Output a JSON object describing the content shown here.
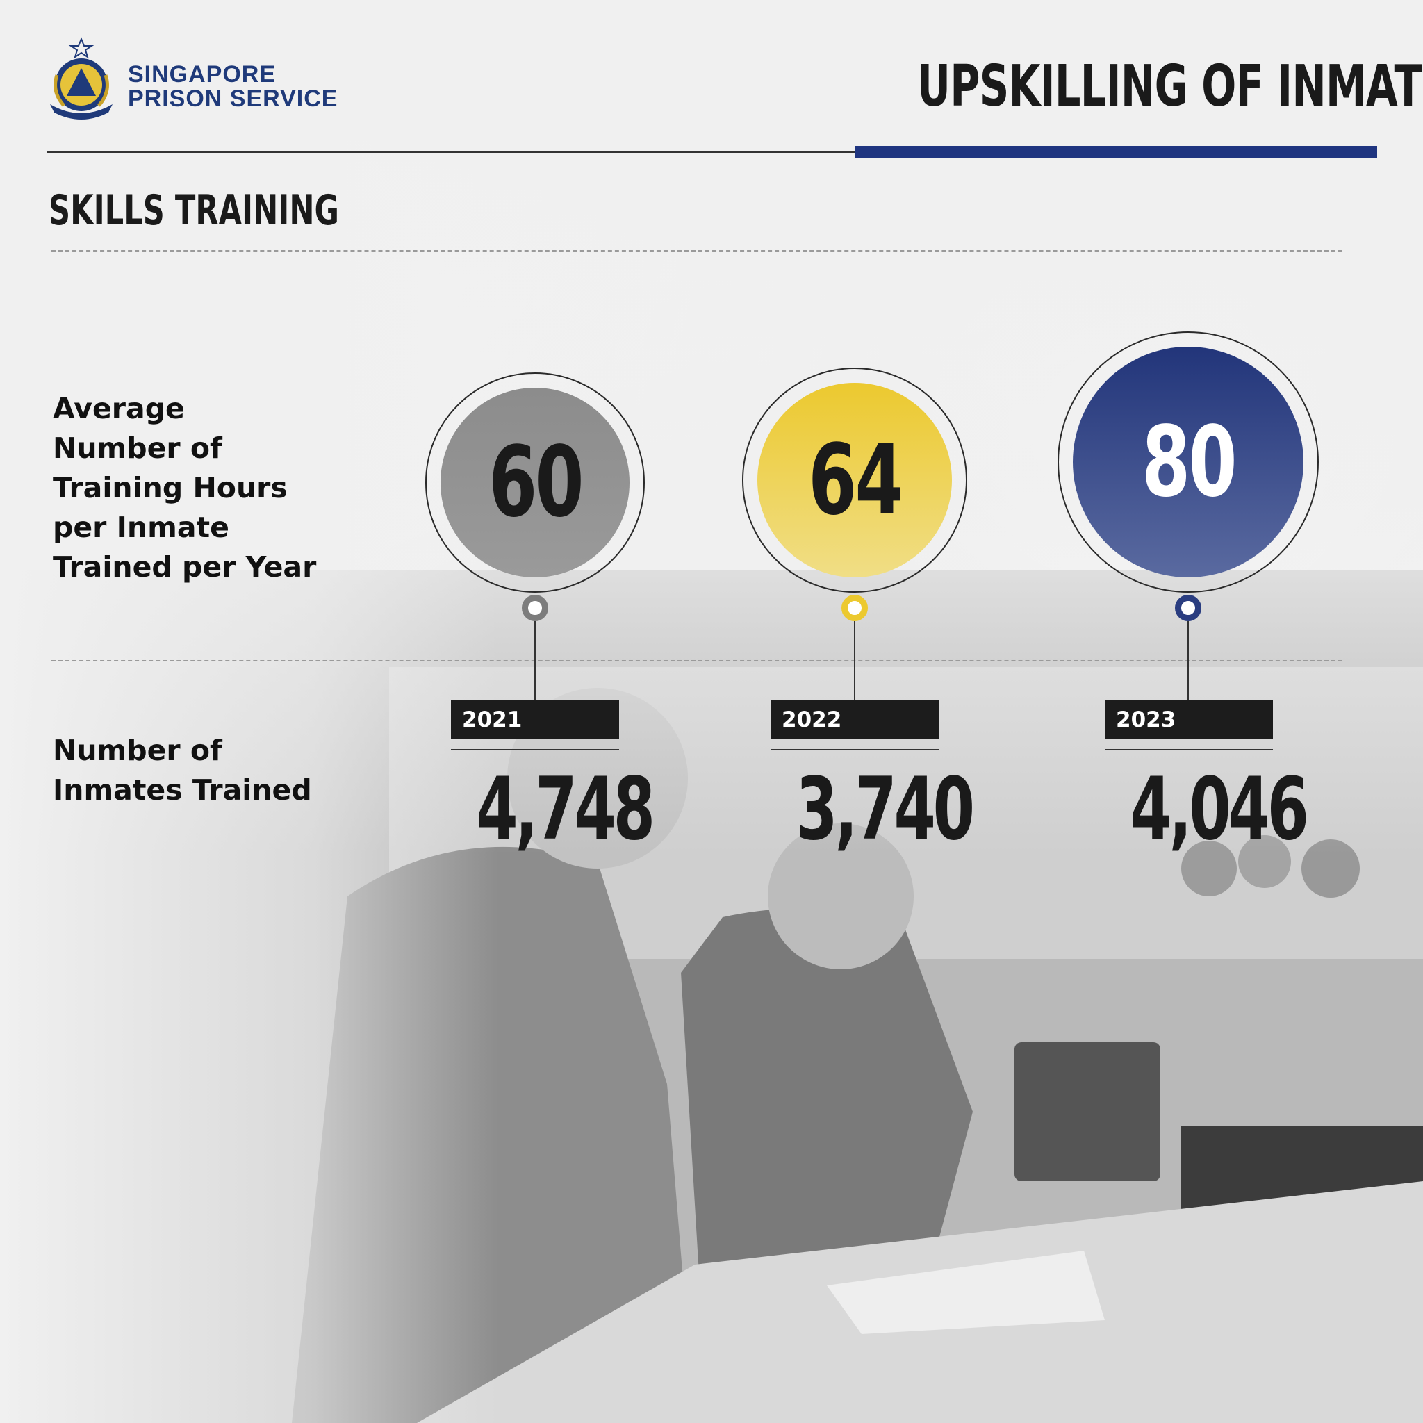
{
  "brand": {
    "line1": "SINGAPORE",
    "line2": "PRISON SERVICE",
    "color": "#1f3a7a"
  },
  "header": {
    "title": "UPSKILLING OF INMATES"
  },
  "section": {
    "title": "SKILLS TRAINING"
  },
  "labels": {
    "hours": [
      "Average",
      "Number of",
      "Training Hours",
      "per Inmate",
      "Trained per Year"
    ],
    "inmates": [
      "Number of",
      "Inmates Trained"
    ]
  },
  "chart_data": {
    "type": "table",
    "categories": [
      "2021",
      "2022",
      "2023"
    ],
    "series": [
      {
        "name": "Average Number of Training Hours per Inmate Trained per Year",
        "values": [
          60,
          64,
          80
        ],
        "display": [
          "60",
          "64",
          "80"
        ]
      },
      {
        "name": "Number of Inmates Trained",
        "values": [
          4748,
          3740,
          4046
        ],
        "display": [
          "4,748",
          "3,740",
          "4,046"
        ]
      }
    ],
    "colors": [
      "#8a8a8a",
      "#ecc92f",
      "#2a3d80"
    ],
    "accent": "#1f3580"
  }
}
